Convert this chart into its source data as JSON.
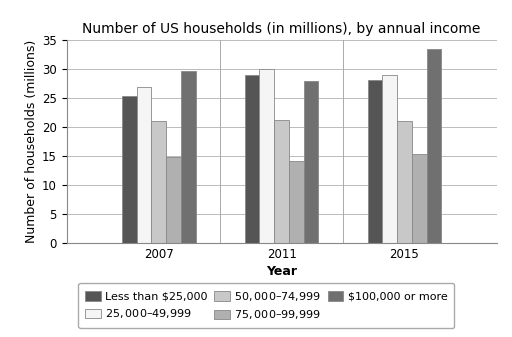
{
  "title": "Number of US households (in millions), by annual income",
  "xlabel": "Year",
  "ylabel": "Number of households (millions)",
  "years": [
    "2007",
    "2011",
    "2015"
  ],
  "categories": [
    "Less than $25,000",
    "$25,000–$49,999",
    "$50,000–$74,999",
    "$75,000–$99,999",
    "$100,000 or more"
  ],
  "values": {
    "Less than $25,000": [
      25.3,
      29.0,
      28.1
    ],
    "$25,000–$49,999": [
      27.0,
      30.0,
      29.0
    ],
    "$50,000–$74,999": [
      21.0,
      21.2,
      21.0
    ],
    "$75,000–$99,999": [
      14.8,
      14.2,
      15.3
    ],
    "$100,000 or more": [
      29.7,
      28.0,
      33.5
    ]
  },
  "colors": [
    "#555555",
    "#f5f5f5",
    "#c8c8c8",
    "#b0b0b0",
    "#707070"
  ],
  "ylim": [
    0,
    35
  ],
  "yticks": [
    0,
    5,
    10,
    15,
    20,
    25,
    30,
    35
  ],
  "bar_width": 0.12,
  "background_color": "#ffffff",
  "grid_color": "#bbbbbb",
  "title_fontsize": 10,
  "axis_label_fontsize": 9,
  "tick_fontsize": 8.5,
  "legend_fontsize": 8
}
